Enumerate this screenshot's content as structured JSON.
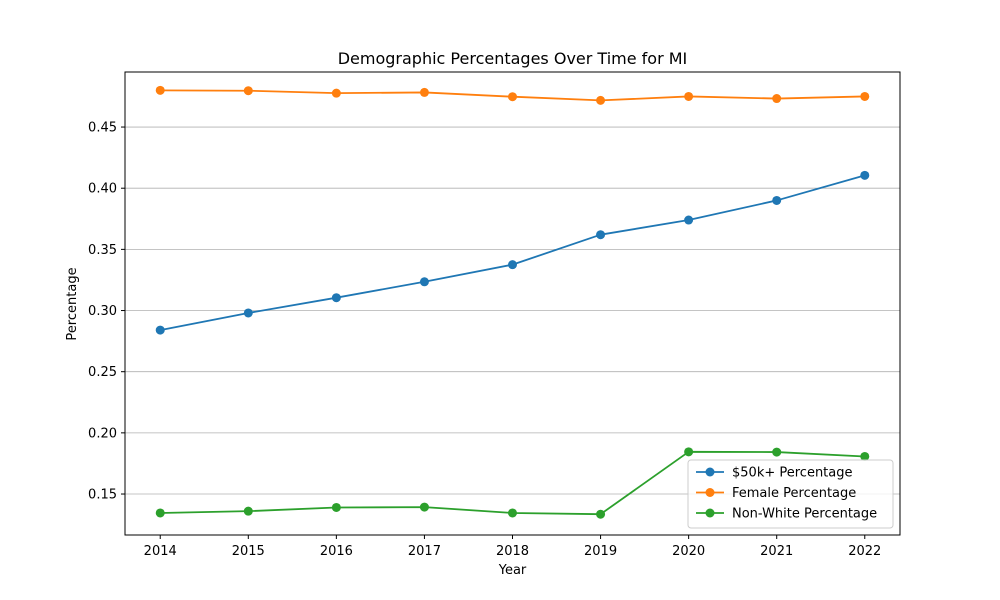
{
  "chart_data": {
    "type": "line",
    "title": "Demographic Percentages Over Time for MI",
    "xlabel": "Year",
    "ylabel": "Percentage",
    "x": [
      2014,
      2015,
      2016,
      2017,
      2018,
      2019,
      2020,
      2021,
      2022
    ],
    "x_tick_labels": [
      "2014",
      "2015",
      "2016",
      "2017",
      "2018",
      "2019",
      "2020",
      "2021",
      "2022"
    ],
    "y_ticks": [
      0.15,
      0.2,
      0.25,
      0.3,
      0.35,
      0.4,
      0.45
    ],
    "y_tick_labels": [
      "0.15",
      "0.20",
      "0.25",
      "0.30",
      "0.35",
      "0.40",
      "0.45"
    ],
    "xlim": [
      2013.6,
      2022.4
    ],
    "ylim": [
      0.1165,
      0.495
    ],
    "grid": "horizontal",
    "legend_position": "lower-right",
    "series": [
      {
        "name": "$50k+ Percentage",
        "color": "#1f77b4",
        "values": [
          0.284,
          0.298,
          0.3105,
          0.3235,
          0.3375,
          0.362,
          0.374,
          0.39,
          0.4105
        ]
      },
      {
        "name": "Female Percentage",
        "color": "#ff7f0e",
        "values": [
          0.48,
          0.4797,
          0.4777,
          0.4783,
          0.4748,
          0.4718,
          0.475,
          0.4733,
          0.475
        ]
      },
      {
        "name": "Non-White Percentage",
        "color": "#2ca02c",
        "values": [
          0.1345,
          0.136,
          0.139,
          0.1393,
          0.1345,
          0.1335,
          0.1845,
          0.1843,
          0.1807
        ]
      }
    ]
  }
}
